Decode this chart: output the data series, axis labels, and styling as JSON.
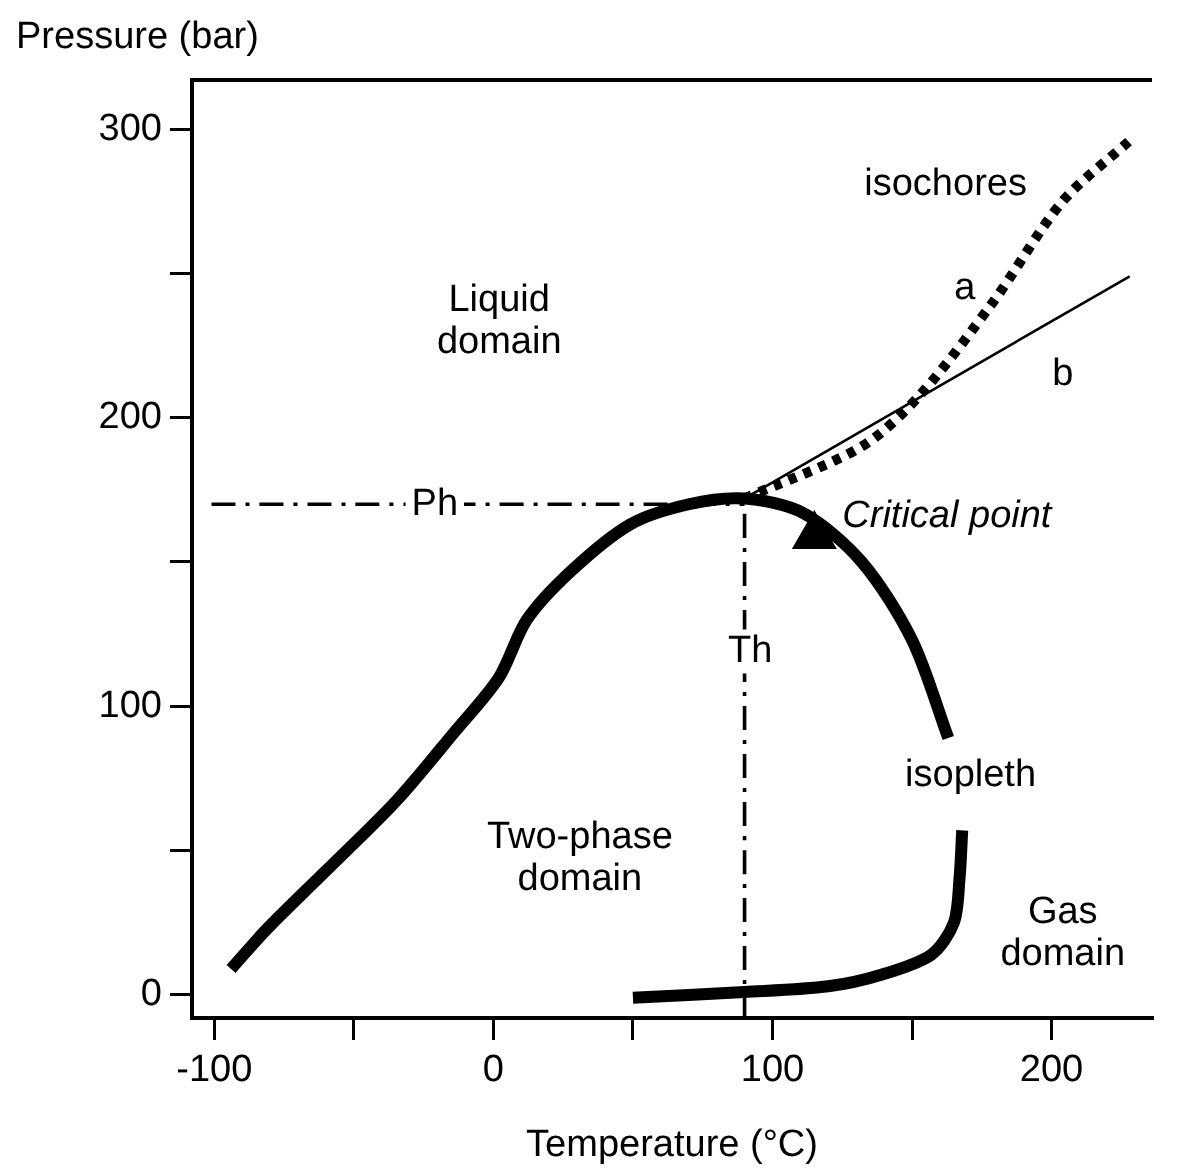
{
  "chart_data": {
    "type": "line",
    "xlabel": "Temperature (°C)",
    "ylabel": "Pressure (bar)",
    "xlim": [
      -108,
      236
    ],
    "ylim": [
      -8,
      317
    ],
    "xticks": [
      -100,
      {
        "value": -50,
        "label": null
      },
      0,
      {
        "value": 50,
        "label": null
      },
      100,
      {
        "value": 150,
        "label": null
      },
      200
    ],
    "yticks": [
      0,
      {
        "value": 50,
        "label": null
      },
      100,
      {
        "value": 150,
        "label": null
      },
      200,
      {
        "value": 250,
        "label": null
      },
      300
    ],
    "legend": false,
    "series": [
      {
        "color": "#000000",
        "line_style": "solid",
        "marker": "none",
        "x": [
          -94,
          -81,
          -60,
          -35,
          -14,
          2,
          12,
          28,
          49,
          70,
          90,
          111,
          132,
          150,
          163,
          165,
          168,
          167,
          165,
          157,
          139,
          120,
          90,
          50
        ],
        "values": [
          9,
          23,
          43,
          67,
          91,
          110,
          130,
          147,
          163,
          170,
          172,
          167,
          150,
          123,
          89,
          null,
          57,
          40,
          25,
          14,
          7,
          3,
          1,
          -1
        ]
      },
      {
        "color": "#000000",
        "line_style": "dotted",
        "marker": "none",
        "x": [
          90,
          132,
          153,
          179,
          204,
          228
        ],
        "values": [
          172,
          190,
          208,
          240,
          275,
          296
        ]
      },
      {
        "color": "#000000",
        "line_style": "solid",
        "marker": "none",
        "x": [
          90,
          228
        ],
        "values": [
          172,
          249
        ]
      },
      {
        "color": "#000000",
        "line_style": "dashed",
        "marker": "none",
        "x": [
          -101,
          90
        ],
        "values": [
          170,
          170
        ]
      },
      {
        "color": "#000000",
        "line_style": "dashed",
        "marker": "none",
        "x": [
          90,
          90
        ],
        "values": [
          -8,
          172
        ]
      },
      {
        "type": "scatter",
        "color": "#000000",
        "marker": "triangle",
        "x": [
          115
        ],
        "values": [
          159
        ]
      }
    ],
    "annotations": [
      "Liquid domain",
      "Two-phase domain",
      "Gas domain",
      "isopleth",
      "isochores",
      "a",
      "b",
      {
        "text": "Critical point",
        "x": 115,
        "y": 159
      },
      {
        "text": "Ph",
        "x": -21,
        "y": 170
      },
      {
        "text": "Th",
        "x": 92,
        "y": 119
      }
    ]
  }
}
